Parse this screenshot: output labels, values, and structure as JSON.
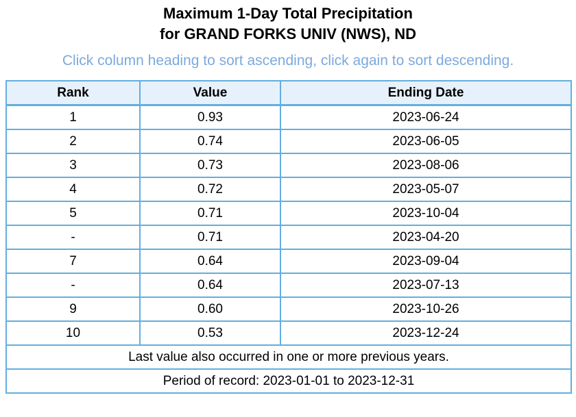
{
  "title": {
    "line1": "Maximum 1-Day Total Precipitation",
    "line2": "for GRAND FORKS UNIV (NWS), ND"
  },
  "instruction": "Click column heading to sort ascending, click again to sort descending.",
  "colors": {
    "title_text": "#000000",
    "instruction_text": "#7da9dc",
    "table_border": "#62aee0",
    "header_background": "#e7f1fb",
    "cell_background": "#ffffff",
    "cell_text": "#000000"
  },
  "table": {
    "headers": [
      "Rank",
      "Value",
      "Ending Date"
    ],
    "rows": [
      [
        "1",
        "0.93",
        "2023-06-24"
      ],
      [
        "2",
        "0.74",
        "2023-06-05"
      ],
      [
        "3",
        "0.73",
        "2023-08-06"
      ],
      [
        "4",
        "0.72",
        "2023-05-07"
      ],
      [
        "5",
        "0.71",
        "2023-10-04"
      ],
      [
        "-",
        "0.71",
        "2023-04-20"
      ],
      [
        "7",
        "0.64",
        "2023-09-04"
      ],
      [
        "-",
        "0.64",
        "2023-07-13"
      ],
      [
        "9",
        "0.60",
        "2023-10-26"
      ],
      [
        "10",
        "0.53",
        "2023-12-24"
      ]
    ],
    "footnotes": [
      "Last value also occurred in one or more previous years.",
      "Period of record: 2023-01-01 to 2023-12-31"
    ]
  },
  "chart_data": {
    "type": "table",
    "title": "Maximum 1-Day Total Precipitation for GRAND FORKS UNIV (NWS), ND",
    "columns": [
      "Rank",
      "Value",
      "Ending Date"
    ],
    "rows": [
      [
        "1",
        0.93,
        "2023-06-24"
      ],
      [
        "2",
        0.74,
        "2023-06-05"
      ],
      [
        "3",
        0.73,
        "2023-08-06"
      ],
      [
        "4",
        0.72,
        "2023-05-07"
      ],
      [
        "5",
        0.71,
        "2023-10-04"
      ],
      [
        "-",
        0.71,
        "2023-04-20"
      ],
      [
        "7",
        0.64,
        "2023-09-04"
      ],
      [
        "-",
        0.64,
        "2023-07-13"
      ],
      [
        "9",
        0.6,
        "2023-10-26"
      ],
      [
        "10",
        0.53,
        "2023-12-24"
      ]
    ],
    "notes": [
      "Last value also occurred in one or more previous years.",
      "Period of record: 2023-01-01 to 2023-12-31"
    ]
  }
}
